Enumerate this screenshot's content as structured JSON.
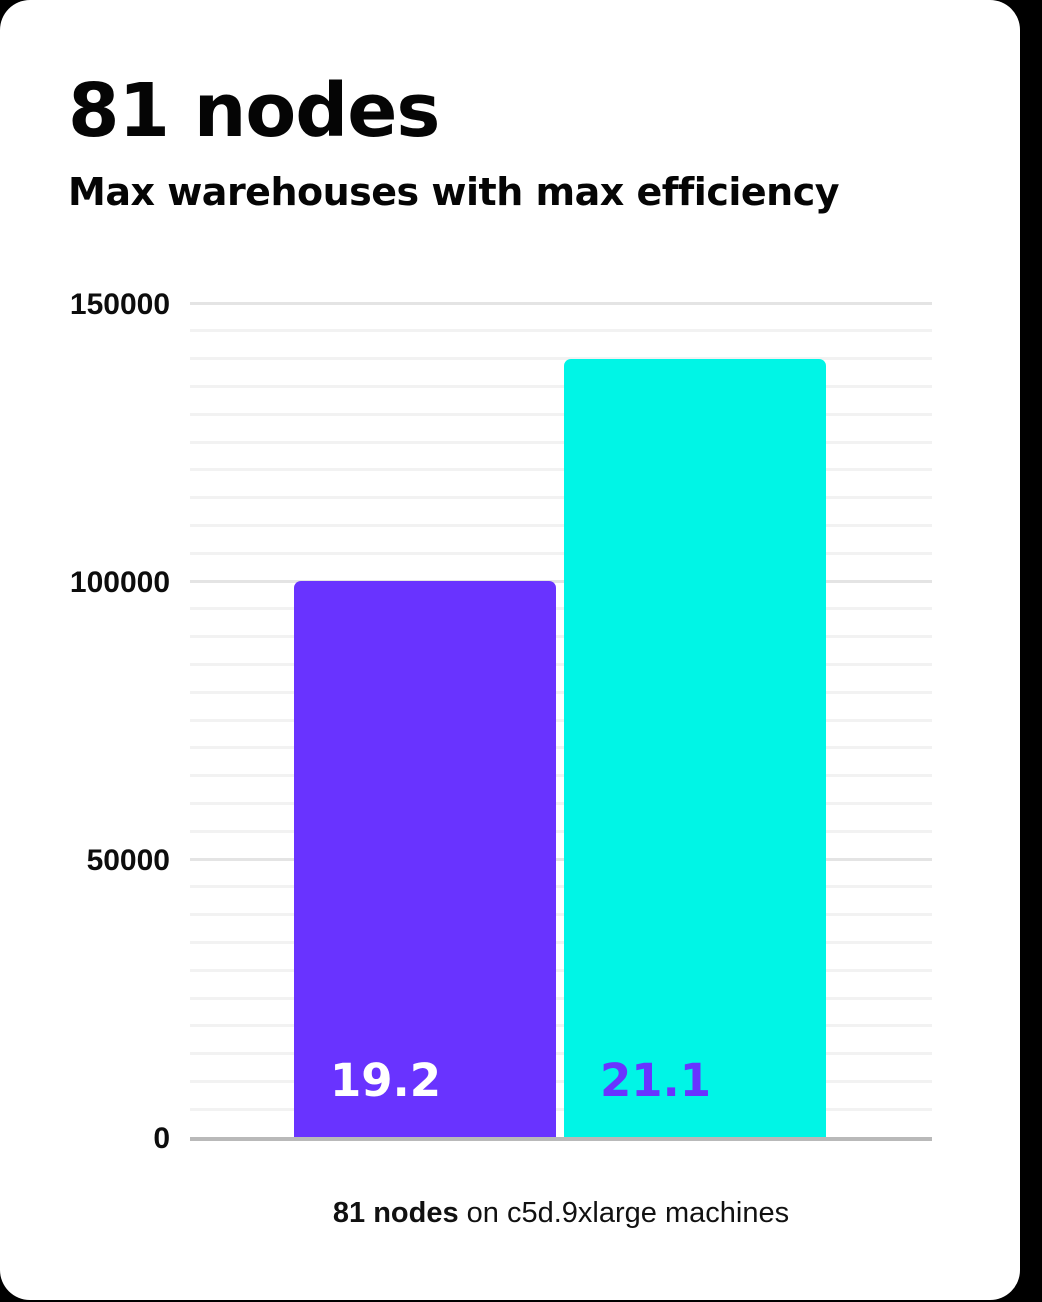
{
  "page": {
    "background_color": "#000000",
    "card_color": "#FFFFFF"
  },
  "header": {
    "title": "81 nodes",
    "subtitle": "Max warehouses with max efficiency"
  },
  "chart_data": {
    "type": "bar",
    "title": "81 nodes",
    "subtitle": "Max warehouses with max efficiency",
    "categories": [
      "19.2",
      "21.1"
    ],
    "values": [
      100000,
      140000
    ],
    "series": [
      {
        "name": "19.2",
        "value": 100000,
        "bar_color": "#6933FF",
        "label": "19.2",
        "label_color": "#FFFFFF"
      },
      {
        "name": "21.1",
        "value": 140000,
        "bar_color": "#00F5E6",
        "label": "21.1",
        "label_color": "#6933FF"
      }
    ],
    "xlabel": "",
    "ylabel": "",
    "ylim": [
      0,
      150000
    ],
    "yticks": [
      0,
      50000,
      100000,
      150000
    ],
    "ytick_labels": [
      "0",
      "50000",
      "100000",
      "150000"
    ],
    "minor_gridline_step": 5000,
    "grid": "horizontal",
    "legend": "none",
    "colors": {
      "major_gridline": "#E4E4E4",
      "minor_gridline": "#F2F2F2",
      "axis_baseline": "#B9B9B9"
    }
  },
  "caption": {
    "bold": "81 nodes",
    "rest": " on c5d.9xlarge machines"
  }
}
